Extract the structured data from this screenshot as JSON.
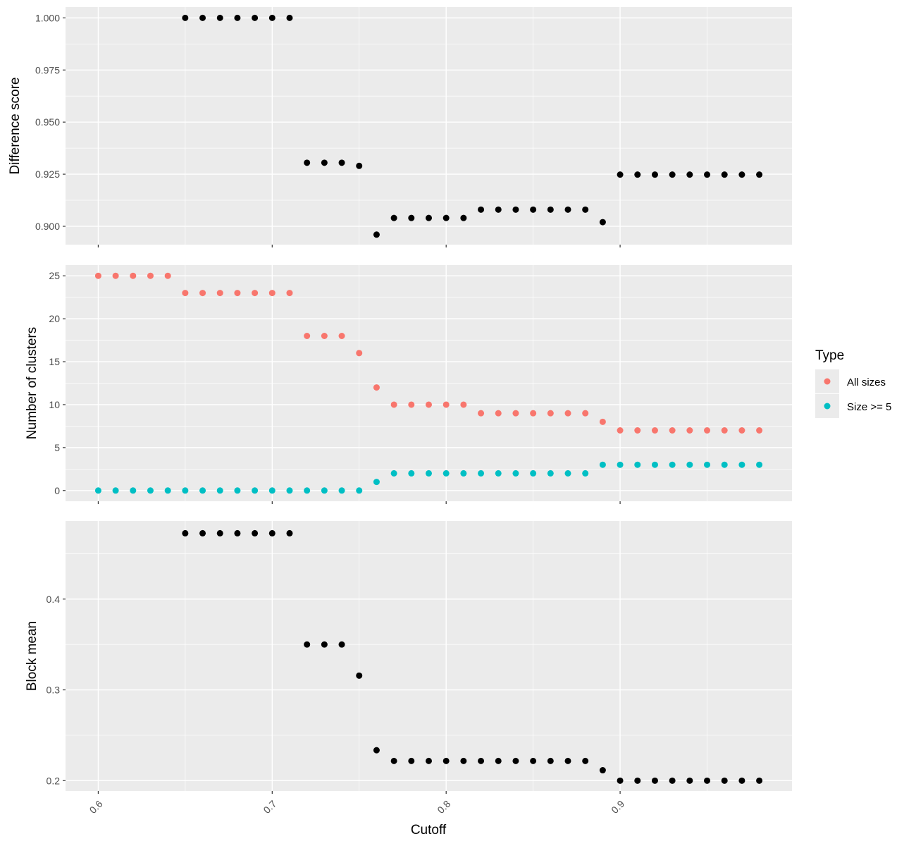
{
  "chart_data": {
    "type": "scatter",
    "xlabel": "Cutoff",
    "x_ticks": [
      0.6,
      0.7,
      0.8,
      0.9
    ],
    "x_tick_labels": [
      "0.6",
      "0.7",
      "0.8",
      "0.9"
    ],
    "xlim": [
      0.5812,
      0.9988
    ],
    "x": [
      0.6,
      0.61,
      0.62,
      0.63,
      0.64,
      0.65,
      0.66,
      0.67,
      0.68,
      0.69,
      0.7,
      0.71,
      0.72,
      0.73,
      0.74,
      0.75,
      0.76,
      0.77,
      0.78,
      0.79,
      0.8,
      0.81,
      0.82,
      0.83,
      0.84,
      0.85,
      0.86,
      0.87,
      0.88,
      0.89,
      0.9,
      0.91,
      0.92,
      0.93,
      0.94,
      0.95,
      0.96,
      0.97,
      0.98
    ],
    "grid": true,
    "background": "#ebebeb",
    "panels": [
      {
        "ylabel": "Difference score",
        "ylim": [
          0.8912,
          1.0052
        ],
        "y_ticks": [
          0.9,
          0.925,
          0.95,
          0.975,
          1.0
        ],
        "y_tick_labels": [
          "0.900",
          "0.925",
          "0.950",
          "0.975",
          "1.000"
        ],
        "series": [
          {
            "color": "#000000",
            "values": [
              null,
              null,
              null,
              null,
              null,
              1.0,
              1.0,
              1.0,
              1.0,
              1.0,
              1.0,
              1.0,
              0.9305,
              0.9305,
              0.9305,
              0.929,
              0.896,
              0.904,
              0.904,
              0.904,
              0.904,
              0.904,
              0.908,
              0.908,
              0.908,
              0.908,
              0.908,
              0.908,
              0.908,
              0.902,
              0.9248,
              0.9248,
              0.9248,
              0.9248,
              0.9248,
              0.9248,
              0.9248,
              0.9248,
              0.9248
            ]
          }
        ]
      },
      {
        "ylabel": "Number of clusters",
        "ylim": [
          -1.25,
          26.25
        ],
        "y_ticks": [
          0,
          5,
          10,
          15,
          20,
          25
        ],
        "y_tick_labels": [
          "0",
          "5",
          "10",
          "15",
          "20",
          "25"
        ],
        "series": [
          {
            "name": "All sizes",
            "color": "#f8766d",
            "values": [
              25,
              25,
              25,
              25,
              25,
              23,
              23,
              23,
              23,
              23,
              23,
              23,
              18,
              18,
              18,
              16,
              12,
              10,
              10,
              10,
              10,
              10,
              9,
              9,
              9,
              9,
              9,
              9,
              9,
              8,
              7,
              7,
              7,
              7,
              7,
              7,
              7,
              7,
              7
            ]
          },
          {
            "name": "Size >= 5",
            "color": "#00bfc4",
            "values": [
              0,
              0,
              0,
              0,
              0,
              0,
              0,
              0,
              0,
              0,
              0,
              0,
              0,
              0,
              0,
              0,
              1,
              2,
              2,
              2,
              2,
              2,
              2,
              2,
              2,
              2,
              2,
              2,
              2,
              3,
              3,
              3,
              3,
              3,
              3,
              3,
              3,
              3,
              3
            ]
          }
        ]
      },
      {
        "ylabel": "Block mean",
        "ylim": [
          0.1886,
          0.486
        ],
        "y_ticks": [
          0.2,
          0.3,
          0.4
        ],
        "y_tick_labels": [
          "0.2",
          "0.3",
          "0.4"
        ],
        "series": [
          {
            "color": "#000000",
            "values": [
              null,
              null,
              null,
              null,
              null,
              0.4725,
              0.4725,
              0.4725,
              0.4725,
              0.4725,
              0.4725,
              0.4725,
              0.35,
              0.35,
              0.35,
              0.3157,
              0.2335,
              0.2217,
              0.2217,
              0.2217,
              0.2217,
              0.2217,
              0.2217,
              0.2217,
              0.2217,
              0.2217,
              0.2217,
              0.2217,
              0.2217,
              0.2115,
              0.2,
              0.2,
              0.2,
              0.2,
              0.2,
              0.2,
              0.2,
              0.2,
              0.2
            ]
          }
        ]
      }
    ],
    "legend": {
      "title": "Type",
      "position": "right",
      "entries": [
        {
          "label": "All sizes",
          "color": "#f8766d"
        },
        {
          "label": "Size >= 5",
          "color": "#00bfc4"
        }
      ]
    }
  }
}
